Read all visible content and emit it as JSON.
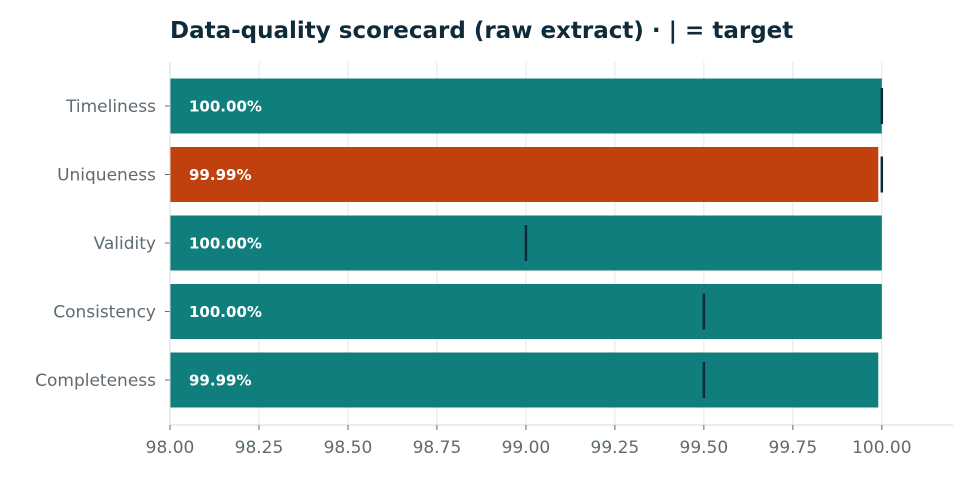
{
  "chart_data": {
    "type": "bar",
    "orientation": "horizontal",
    "title": "Data-quality scorecard (raw extract) · | = target",
    "categories": [
      "Timeliness",
      "Uniqueness",
      "Validity",
      "Consistency",
      "Completeness"
    ],
    "values": [
      100.0,
      99.99,
      100.0,
      100.0,
      99.99
    ],
    "value_labels": [
      "100.00%",
      "99.99%",
      "100.00%",
      "100.00%",
      "99.99%"
    ],
    "targets": [
      100.0,
      100.0,
      99.0,
      99.5,
      99.5
    ],
    "bar_colors": [
      "#107e7d",
      "#c1410e",
      "#107e7d",
      "#107e7d",
      "#107e7d"
    ],
    "target_color": "#0f2a3a",
    "xlim": [
      98.0,
      100.2
    ],
    "xticks": [
      98.0,
      98.25,
      98.5,
      98.75,
      99.0,
      99.25,
      99.5,
      99.75,
      100.0
    ],
    "xtick_labels": [
      "98.00",
      "98.25",
      "98.50",
      "98.75",
      "99.00",
      "99.25",
      "99.50",
      "99.75",
      "100.00"
    ],
    "xlabel": "",
    "ylabel": "",
    "grid": "vertical"
  }
}
